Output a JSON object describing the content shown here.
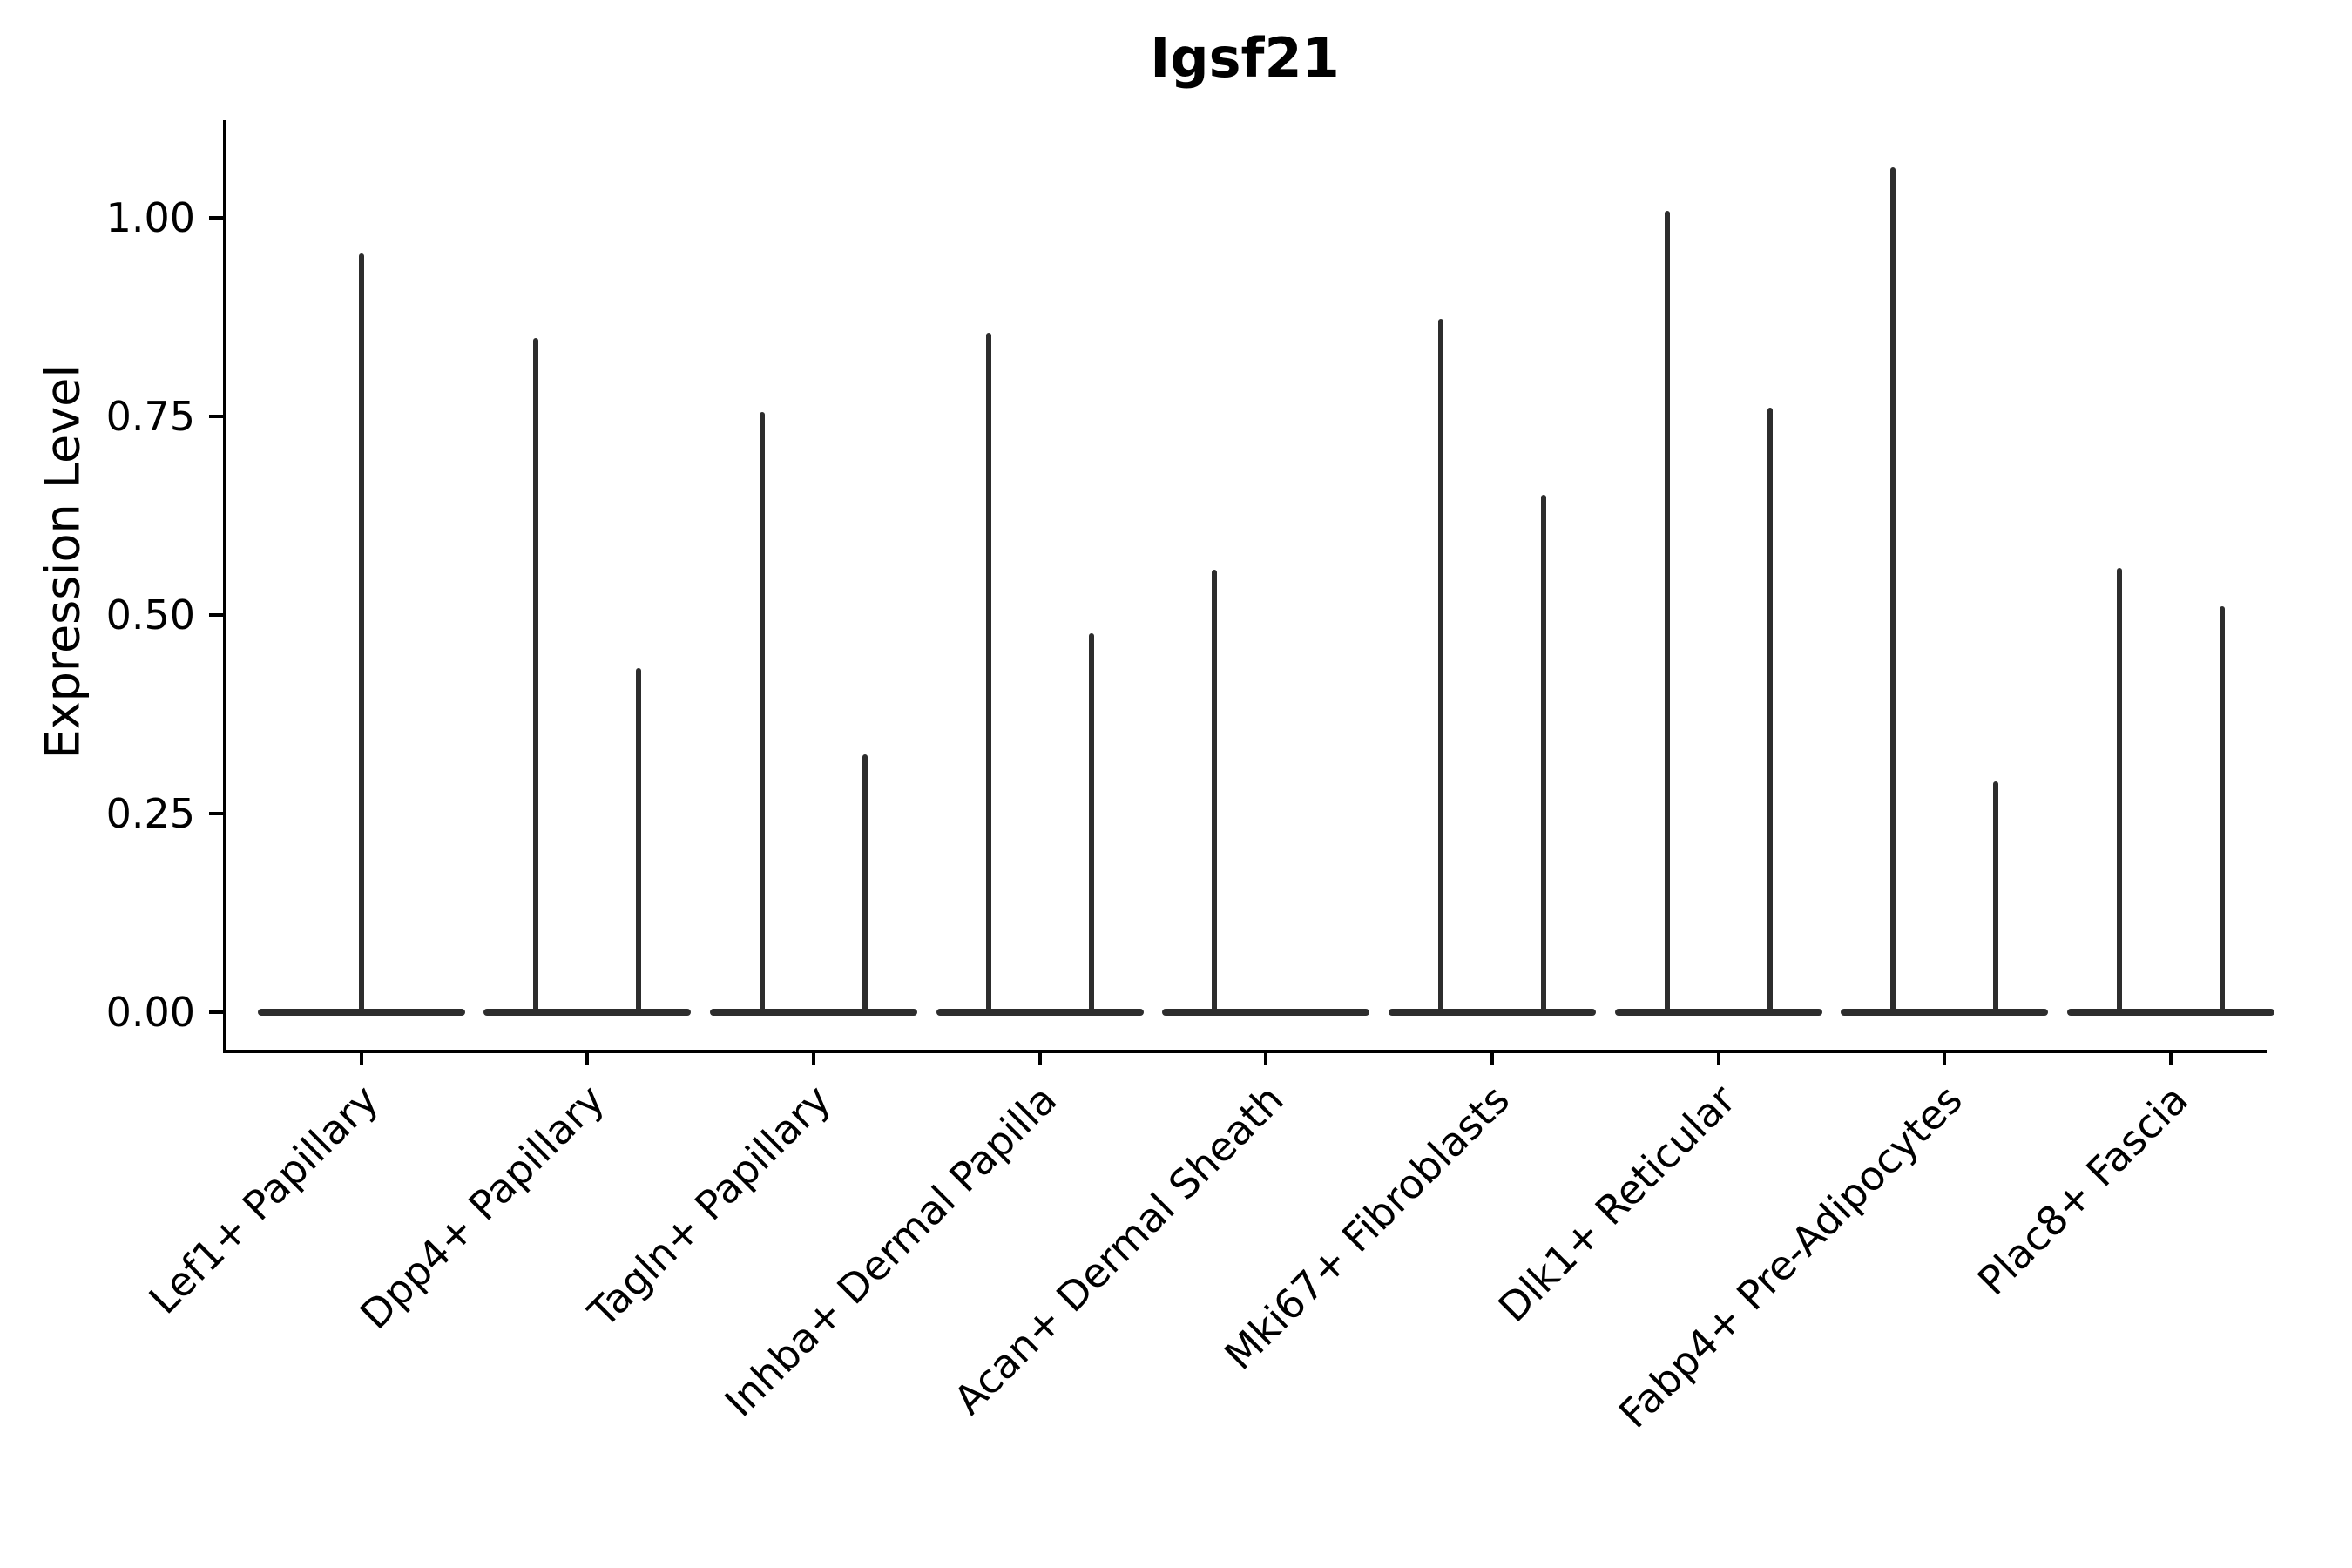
{
  "title": "Igsf21",
  "axes": {
    "ylabel": "Expression Level",
    "y_tick_labels": [
      "1.00",
      "0.75",
      "0.50",
      "0.25",
      "0.00"
    ],
    "y_tick_values": [
      1.0,
      0.75,
      0.5,
      0.25,
      0.0
    ]
  },
  "chart_data": {
    "type": "violin",
    "title": "Igsf21",
    "xlabel": "",
    "ylabel": "Expression Level",
    "categories": [
      "Lef1+ Papillary",
      "Dpp4+ Papillary",
      "Tagln+ Papillary",
      "Inhba+ Dermal Papilla",
      "Acan+ Dermal Sheath",
      "Mki67+ Fibroblasts",
      "Dlk1+ Reticular",
      "Fabp4+ Pre-Adipocytes",
      "Plac8+ Fascia"
    ],
    "series": [
      {
        "name": "Lef1+ Papillary",
        "max_values": [
          0.955
        ]
      },
      {
        "name": "Dpp4+ Papillary",
        "max_values": [
          0.849,
          0.433
        ]
      },
      {
        "name": "Tagln+ Papillary",
        "max_values": [
          0.756,
          0.325
        ]
      },
      {
        "name": "Inhba+ Dermal Papilla",
        "max_values": [
          0.855,
          0.477
        ]
      },
      {
        "name": "Acan+ Dermal Sheath",
        "max_values": [
          0.557,
          0
        ]
      },
      {
        "name": "Mki67+ Fibroblasts",
        "max_values": [
          0.873,
          0.651
        ]
      },
      {
        "name": "Dlk1+ Reticular",
        "max_values": [
          1.009,
          0.761
        ]
      },
      {
        "name": "Fabp4+ Pre-Adipocytes",
        "max_values": [
          1.064,
          0.291
        ]
      },
      {
        "name": "Plac8+ Fascia",
        "max_values": [
          0.559,
          0.511
        ]
      }
    ],
    "y_ticks": [
      0.0,
      0.25,
      0.5,
      0.75,
      1.0
    ],
    "ylim": [
      -0.05,
      1.12
    ],
    "grid": false,
    "legend": null,
    "description": "Violin plot of Igsf21 expression per cell type; distributions are mostly zeros (wide flat base at 0) with a thin density spike reaching the maximum expression value; categories after the first show two sub-violins"
  },
  "colors": {
    "background": "#ffffff",
    "violin": "#2d2d2d",
    "axis": "#000000",
    "text": "#000000"
  }
}
